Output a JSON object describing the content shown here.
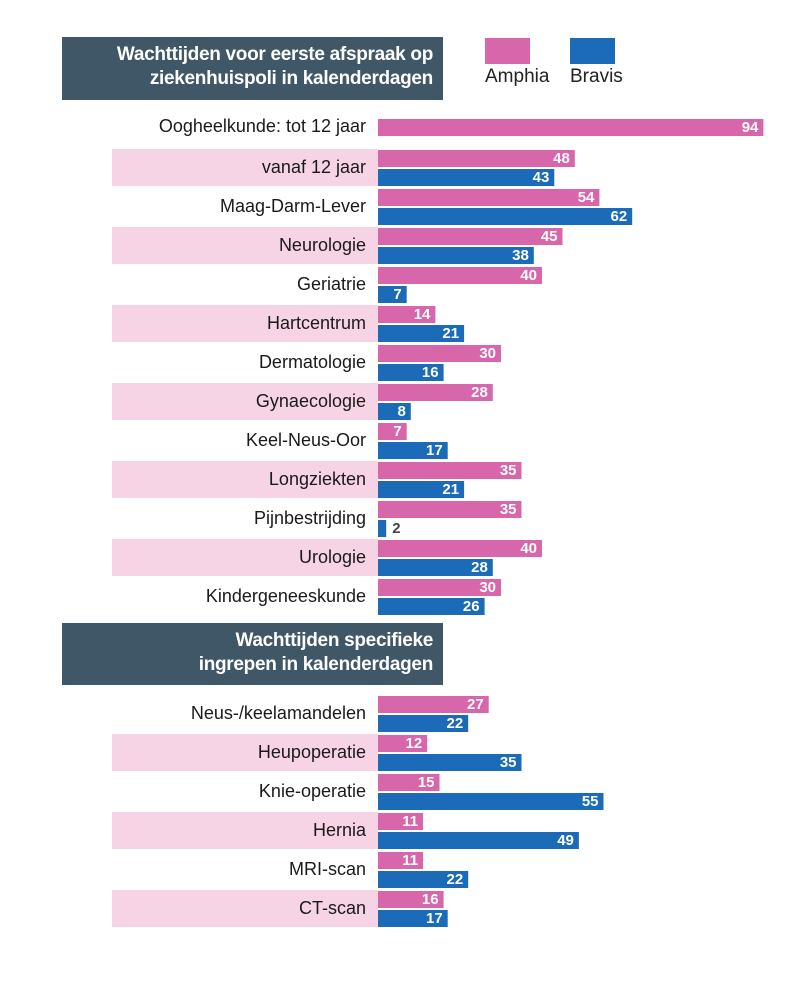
{
  "chart_data": {
    "type": "bar",
    "orientation": "horizontal",
    "series_names": [
      "Amphia",
      "Bravis"
    ],
    "colors": {
      "Amphia": "#d767aa",
      "Bravis": "#1b6bb8",
      "band": "#f6d3e5",
      "header": "#3f5766",
      "value_text": "#ffffff"
    },
    "sections": [
      {
        "title_lines": [
          "Wachttijden voor eerste afspraak op",
          "ziekenhuispoli in kalenderdagen"
        ],
        "rows": [
          {
            "label": "Oogheelkunde: tot 12 jaar",
            "amphia": 94,
            "bravis": null
          },
          {
            "label": "vanaf 12 jaar",
            "amphia": 48,
            "bravis": 43
          },
          {
            "label": "Maag-Darm-Lever",
            "amphia": 54,
            "bravis": 62
          },
          {
            "label": "Neurologie",
            "amphia": 45,
            "bravis": 38
          },
          {
            "label": "Geriatrie",
            "amphia": 40,
            "bravis": 7
          },
          {
            "label": "Hartcentrum",
            "amphia": 14,
            "bravis": 21
          },
          {
            "label": "Dermatologie",
            "amphia": 30,
            "bravis": 16
          },
          {
            "label": "Gynaecologie",
            "amphia": 28,
            "bravis": 8
          },
          {
            "label": "Keel-Neus-Oor",
            "amphia": 7,
            "bravis": 17
          },
          {
            "label": "Longziekten",
            "amphia": 35,
            "bravis": 21
          },
          {
            "label": "Pijnbestrijding",
            "amphia": 35,
            "bravis": 2
          },
          {
            "label": "Urologie",
            "amphia": 40,
            "bravis": 28
          },
          {
            "label": "Kindergeneeskunde",
            "amphia": 30,
            "bravis": 26
          }
        ]
      },
      {
        "title_lines": [
          "Wachttijden specifieke",
          "ingrepen in kalenderdagen"
        ],
        "rows": [
          {
            "label": "Neus-/keelamandelen",
            "amphia": 27,
            "bravis": 22
          },
          {
            "label": "Heupoperatie",
            "amphia": 12,
            "bravis": 35
          },
          {
            "label": "Knie-operatie",
            "amphia": 15,
            "bravis": 55
          },
          {
            "label": "Hernia",
            "amphia": 11,
            "bravis": 49
          },
          {
            "label": "MRI-scan",
            "amphia": 11,
            "bravis": 22
          },
          {
            "label": "CT-scan",
            "amphia": 16,
            "bravis": 17
          }
        ]
      }
    ]
  }
}
